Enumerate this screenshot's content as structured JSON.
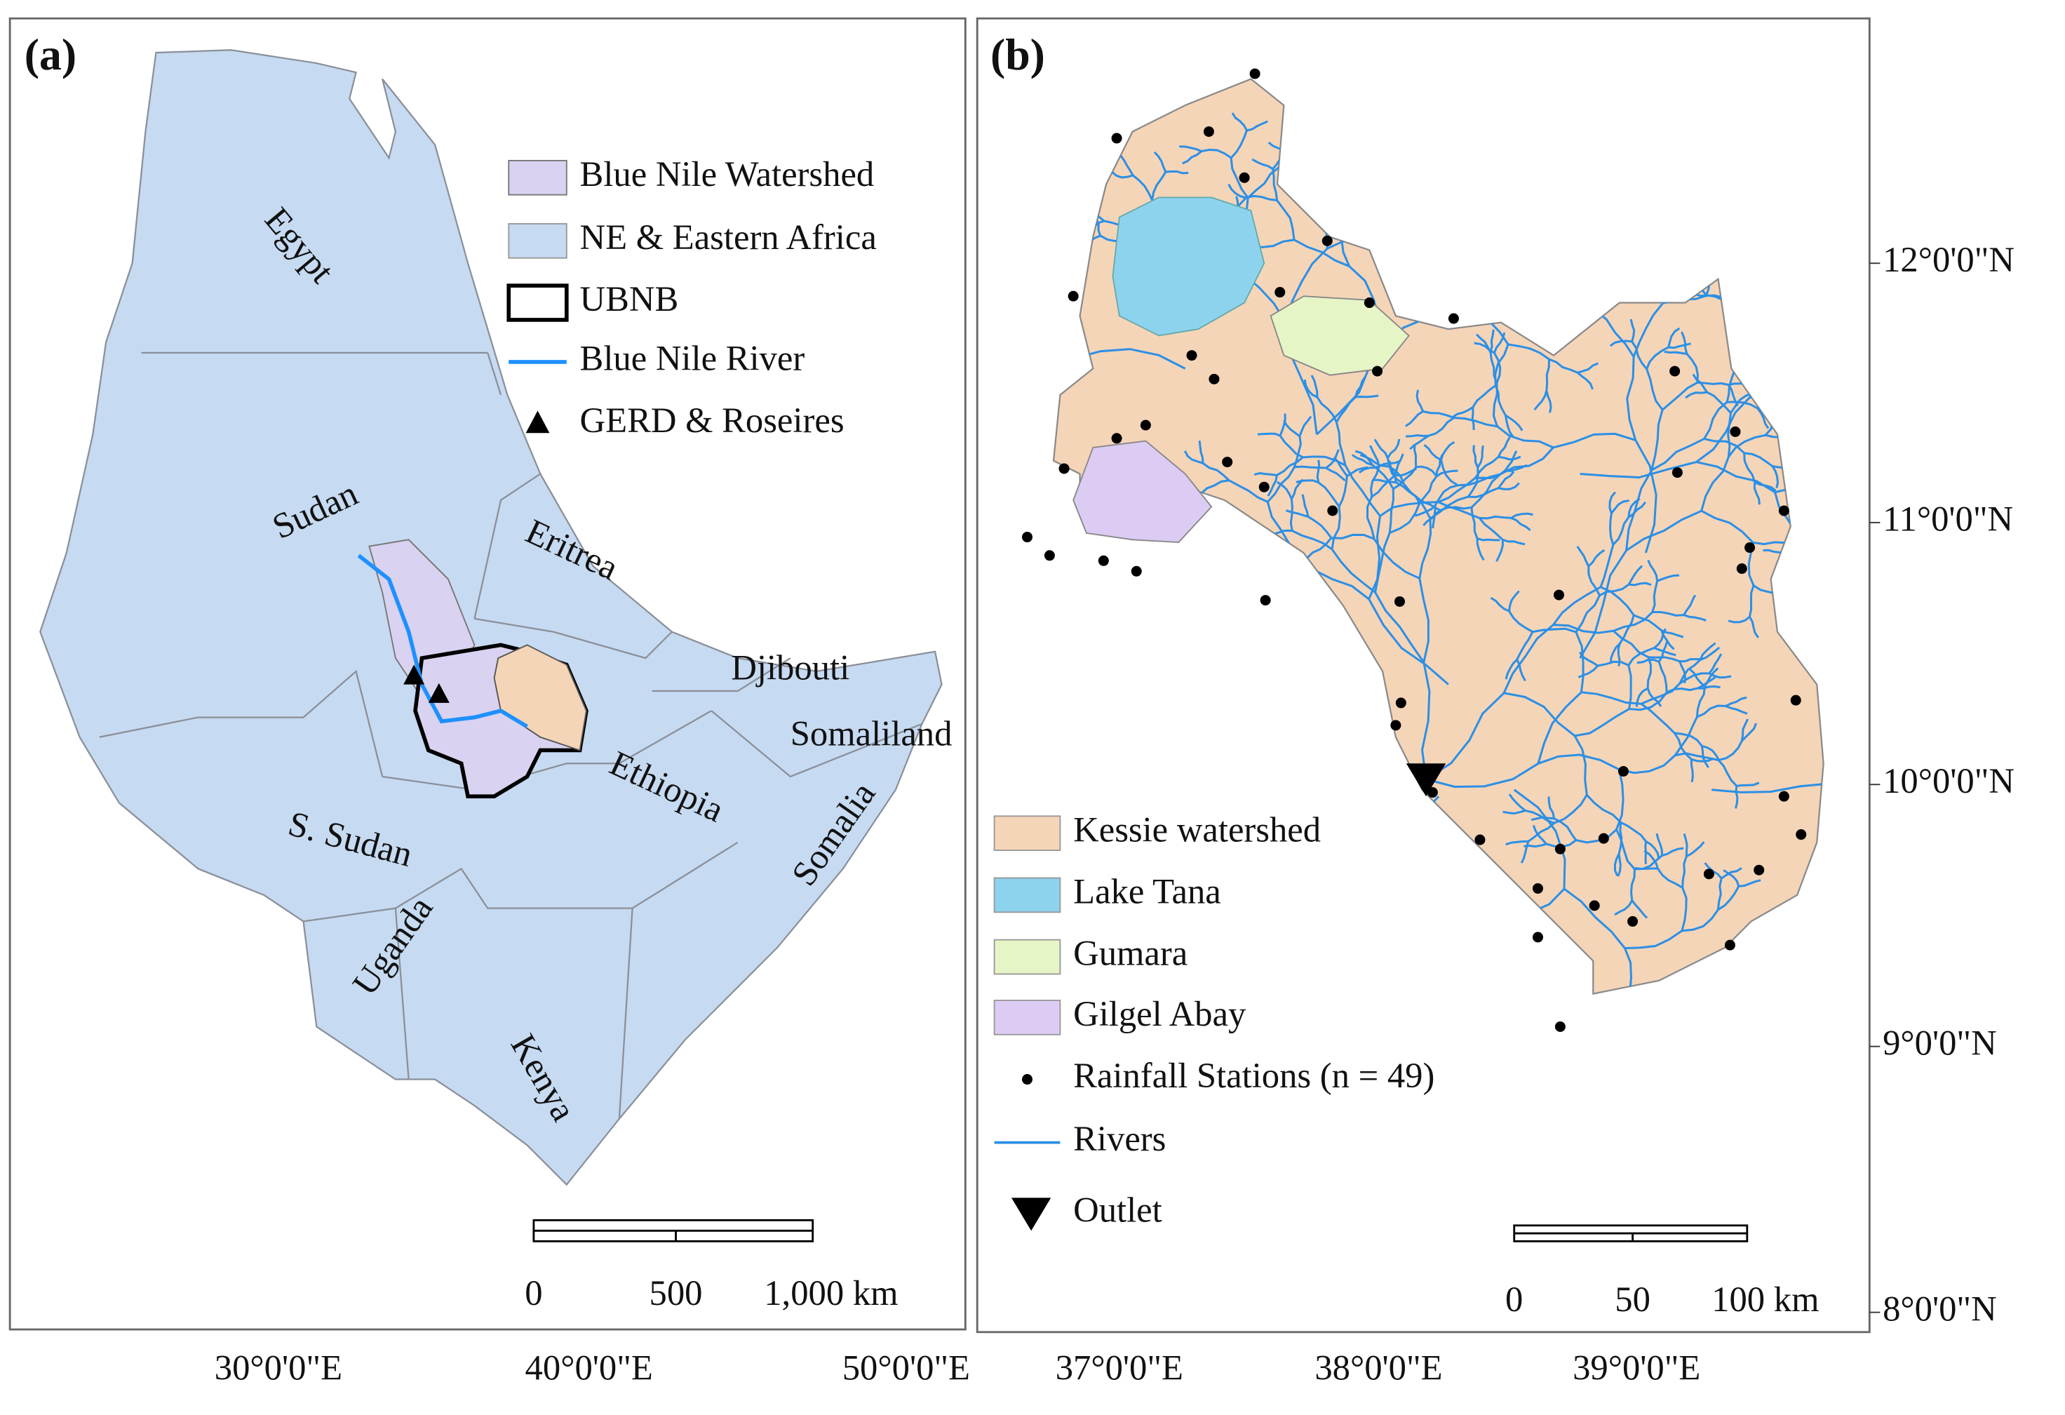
{
  "panels": [
    {
      "label": "(a)",
      "places": [
        "Egypt",
        "Sudan",
        "Eritrea",
        "Djibouti",
        "Somaliland",
        "Ethiopia",
        "Somalia",
        "S. Sudan",
        "Uganda",
        "Kenya"
      ],
      "legend": [
        "Blue Nile Watershed",
        "NE & Eastern Africa",
        "UBNB",
        "Blue Nile River",
        "GERD & Roseires"
      ],
      "scale_bar": [
        "0",
        "500",
        "1,000 km"
      ],
      "x_axis": [
        "30°0'0\"E",
        "40°0'0\"E",
        "50°0'0\"E"
      ]
    },
    {
      "label": "(b)",
      "legend": [
        "Kessie watershed",
        "Lake Tana",
        "Gumara",
        "Gilgel Abay",
        "Rainfall Stations (n = 49)",
        "Rivers",
        "Outlet"
      ],
      "scale_bar": [
        "0",
        "50",
        "100 km"
      ],
      "x_axis": [
        "37°0'0\"E",
        "38°0'0\"E",
        "39°0'0\"E"
      ],
      "y_axis": [
        "12°0'0\"N",
        "11°0'0\"N",
        "10°0'0\"N",
        "9°0'0\"N",
        "8°0'0\"N"
      ]
    }
  ]
}
